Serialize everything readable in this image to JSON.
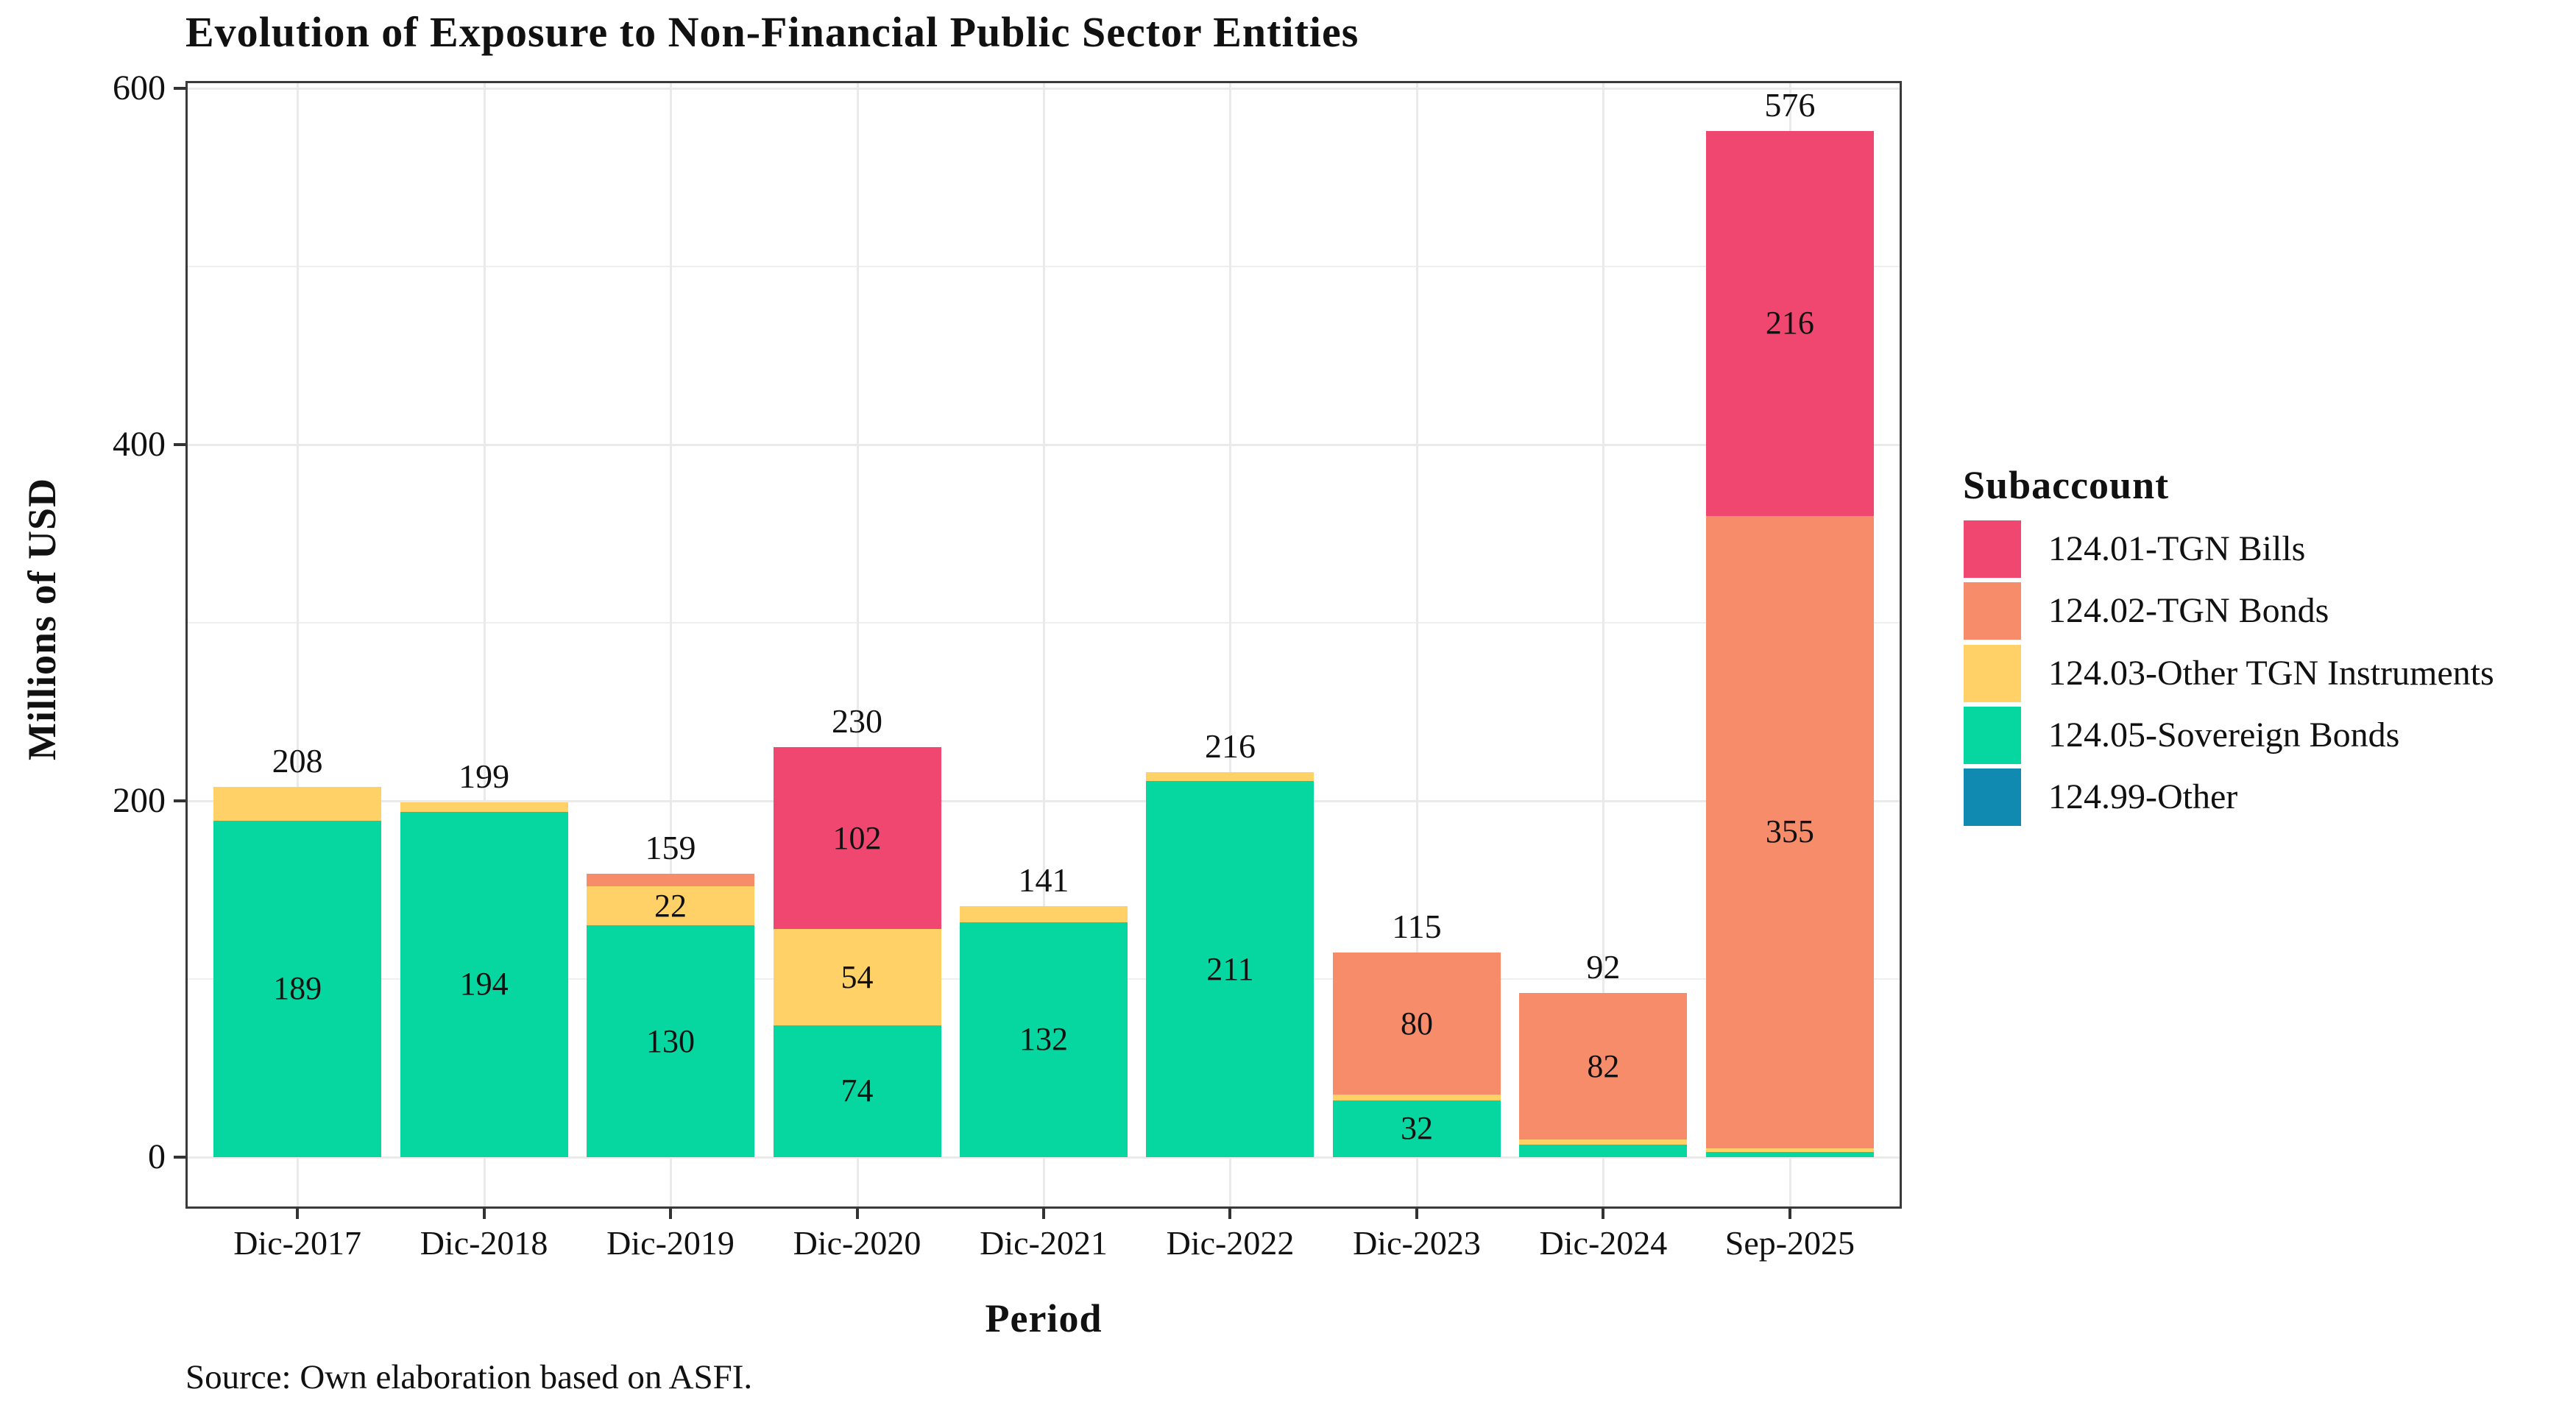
{
  "source_note": "Source: Own elaboration based on ASFI.",
  "chart_data": {
    "type": "bar",
    "stacked": true,
    "title": "Evolution of Exposure to Non-Financial Public Sector Entities",
    "xlabel": "Period",
    "ylabel": "Millions of USD",
    "legend_title": "Subaccount",
    "legend_position": "right",
    "grid": true,
    "categories": [
      "Dic-2017",
      "Dic-2018",
      "Dic-2019",
      "Dic-2020",
      "Dic-2021",
      "Dic-2022",
      "Dic-2023",
      "Dic-2024",
      "Sep-2025"
    ],
    "series": [
      {
        "name": "124.01-TGN Bills",
        "color": "#EF476F",
        "values": [
          0,
          0,
          0,
          102,
          0,
          0,
          0,
          0,
          216
        ]
      },
      {
        "name": "124.02-TGN Bonds",
        "color": "#F78C6B",
        "values": [
          0,
          0,
          7,
          0,
          0,
          0,
          80,
          82,
          355
        ]
      },
      {
        "name": "124.03-Other TGN Instruments",
        "color": "#FFD166",
        "values": [
          19,
          5,
          22,
          54,
          9,
          5,
          3,
          3,
          2
        ]
      },
      {
        "name": "124.05-Sovereign Bonds",
        "color": "#06D6A0",
        "values": [
          189,
          194,
          130,
          74,
          132,
          211,
          32,
          7,
          3
        ]
      },
      {
        "name": "124.99-Other",
        "color": "#118AB2",
        "values": [
          0,
          0,
          0,
          0,
          0,
          0,
          0,
          0,
          0
        ]
      }
    ],
    "totals": [
      208,
      199,
      159,
      230,
      141,
      216,
      115,
      92,
      576
    ],
    "visible_segment_labels": [
      189,
      194,
      130,
      22,
      74,
      54,
      102,
      132,
      211,
      32,
      80,
      82,
      355,
      216
    ],
    "y_ticks": [
      0,
      200,
      400,
      600
    ],
    "y_minor_ticks": [
      100,
      300,
      500
    ],
    "ylim": [
      0,
      605
    ]
  }
}
